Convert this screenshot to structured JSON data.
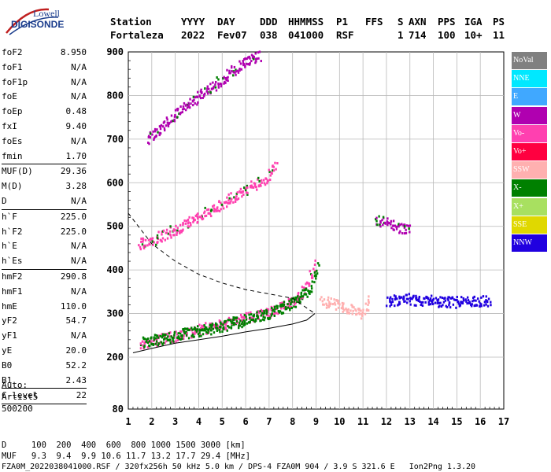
{
  "logo": {
    "line1": "Lowell",
    "line2": "DIGISONDE"
  },
  "header": {
    "labels": [
      "Station",
      "YYYY",
      "DAY",
      "DDD",
      "HHMMSS",
      "P1",
      "FFS",
      "S",
      "AXN",
      "PPS",
      "IGA",
      "PS"
    ],
    "values": [
      "Fortaleza",
      "2022",
      "Fev07",
      "038",
      "041000",
      "RSF",
      "",
      "1",
      "714",
      "100",
      "10+",
      "11"
    ]
  },
  "params": {
    "group1": [
      {
        "k": "foF2",
        "v": "8.950"
      },
      {
        "k": "foF1",
        "v": "N/A"
      },
      {
        "k": "foF1p",
        "v": "N/A"
      },
      {
        "k": "foE",
        "v": "N/A"
      },
      {
        "k": "foEp",
        "v": "0.48"
      },
      {
        "k": "fxI",
        "v": "9.40"
      },
      {
        "k": "foEs",
        "v": "N/A"
      },
      {
        "k": "fmin",
        "v": "1.70"
      }
    ],
    "group2": [
      {
        "k": "MUF(D)",
        "v": "29.36"
      },
      {
        "k": "M(D)",
        "v": "3.28"
      },
      {
        "k": "D",
        "v": "N/A"
      }
    ],
    "group3": [
      {
        "k": "h`F",
        "v": "225.0"
      },
      {
        "k": "h`F2",
        "v": "225.0"
      },
      {
        "k": "h`E",
        "v": "N/A"
      },
      {
        "k": "h`Es",
        "v": "N/A"
      }
    ],
    "group4": [
      {
        "k": "hmF2",
        "v": "290.8"
      },
      {
        "k": "hmF1",
        "v": "N/A"
      },
      {
        "k": "hmE",
        "v": "110.0"
      },
      {
        "k": "yF2",
        "v": "54.7"
      },
      {
        "k": "yF1",
        "v": "N/A"
      },
      {
        "k": "yE",
        "v": "20.0"
      },
      {
        "k": "B0",
        "v": "52.2"
      },
      {
        "k": "B1",
        "v": "2.43"
      }
    ],
    "group5": [
      {
        "k": "C-level",
        "v": "22"
      }
    ]
  },
  "auto": {
    "line1": "Auto:",
    "line2": "Artist5",
    "line3": "500200"
  },
  "footer": {
    "d_row": "D     100  200  400  600  800 1000 1500 3000 [km]",
    "muf_row": "MUF   9.3  9.4  9.9 10.6 11.7 13.2 17.7 29.4 [MHz]",
    "file_row": "FZA0M_2022038041000.RSF / 320fx256h 50 kHz 5.0 km / DPS-4 FZA0M 904 / 3.9 S 321.6 E   Ion2Png 1.3.20"
  },
  "legend": [
    {
      "label": "NoVal",
      "color": "#808080"
    },
    {
      "label": "NNE",
      "color": "#00e8ff"
    },
    {
      "label": "E",
      "color": "#40a8ff"
    },
    {
      "label": "W",
      "color": "#b000b0"
    },
    {
      "label": "Vo-",
      "color": "#ff40b0"
    },
    {
      "label": "Vo+",
      "color": "#ff0040"
    },
    {
      "label": "SSW",
      "color": "#ffb0b0"
    },
    {
      "label": "X-",
      "color": "#008000"
    },
    {
      "label": "X+",
      "color": "#a8e060"
    },
    {
      "label": "SSE",
      "color": "#e0d800"
    },
    {
      "label": "NNW",
      "color": "#2000e0"
    }
  ],
  "chart_data": {
    "type": "scatter",
    "xlabel": "",
    "ylabel": "",
    "x_ticks": [
      "1",
      "2",
      "3",
      "4",
      "5",
      "6",
      "7",
      "8",
      "9",
      "10",
      "11",
      "12",
      "13",
      "14",
      "15",
      "16",
      "17"
    ],
    "y_ticks": [
      "80",
      "200",
      "300",
      "400",
      "500",
      "600",
      "700",
      "800",
      "900"
    ],
    "xlim": [
      1,
      17
    ],
    "ylim": [
      80,
      900
    ],
    "grid": true,
    "legend_position": "right",
    "traces": [
      {
        "name": "Vo-",
        "points": [
          [
            1.5,
            232
          ],
          [
            2,
            238
          ],
          [
            3,
            250
          ],
          [
            4,
            265
          ],
          [
            5,
            275
          ],
          [
            6,
            292
          ],
          [
            7,
            305
          ],
          [
            8,
            330
          ],
          [
            8.5,
            355
          ],
          [
            9,
            420
          ]
        ]
      },
      {
        "name": "X-",
        "points": [
          [
            1.6,
            236
          ],
          [
            2.5,
            245
          ],
          [
            4,
            262
          ],
          [
            5.5,
            280
          ],
          [
            7,
            302
          ],
          [
            8,
            325
          ],
          [
            8.8,
            360
          ],
          [
            9.1,
            410
          ]
        ]
      },
      {
        "name": "Vo-",
        "points": [
          [
            1.4,
            460
          ],
          [
            2,
            470
          ],
          [
            3,
            495
          ],
          [
            4,
            525
          ],
          [
            5,
            555
          ],
          [
            6,
            585
          ],
          [
            6.8,
            610
          ],
          [
            7.3,
            640
          ]
        ]
      },
      {
        "name": "W",
        "points": [
          [
            1.8,
            700
          ],
          [
            3,
            760
          ],
          [
            4,
            800
          ],
          [
            5,
            840
          ],
          [
            6,
            880
          ],
          [
            6.6,
            895
          ]
        ]
      },
      {
        "name": "SSW",
        "points": [
          [
            9.2,
            330
          ],
          [
            10,
            320
          ],
          [
            10.5,
            310
          ],
          [
            11,
            300
          ],
          [
            11.3,
            340
          ]
        ]
      },
      {
        "name": "NNW",
        "points": [
          [
            12,
            330
          ],
          [
            13,
            335
          ],
          [
            14,
            330
          ],
          [
            15,
            328
          ],
          [
            16,
            330
          ],
          [
            16.4,
            332
          ]
        ]
      },
      {
        "name": "W",
        "points": [
          [
            11.5,
            520
          ],
          [
            12,
            510
          ],
          [
            12.5,
            500
          ],
          [
            13,
            495
          ]
        ]
      }
    ],
    "profile_curve": [
      [
        1.2,
        210
      ],
      [
        2,
        220
      ],
      [
        3,
        232
      ],
      [
        4,
        240
      ],
      [
        5,
        248
      ],
      [
        6,
        258
      ],
      [
        7,
        266
      ],
      [
        8,
        276
      ],
      [
        8.6,
        285
      ],
      [
        8.95,
        300
      ]
    ],
    "dashed_curve": [
      [
        1,
        530
      ],
      [
        2,
        460
      ],
      [
        3,
        420
      ],
      [
        4,
        390
      ],
      [
        5,
        370
      ],
      [
        6,
        355
      ],
      [
        7,
        345
      ],
      [
        8,
        335
      ],
      [
        8.95,
        300
      ]
    ]
  }
}
